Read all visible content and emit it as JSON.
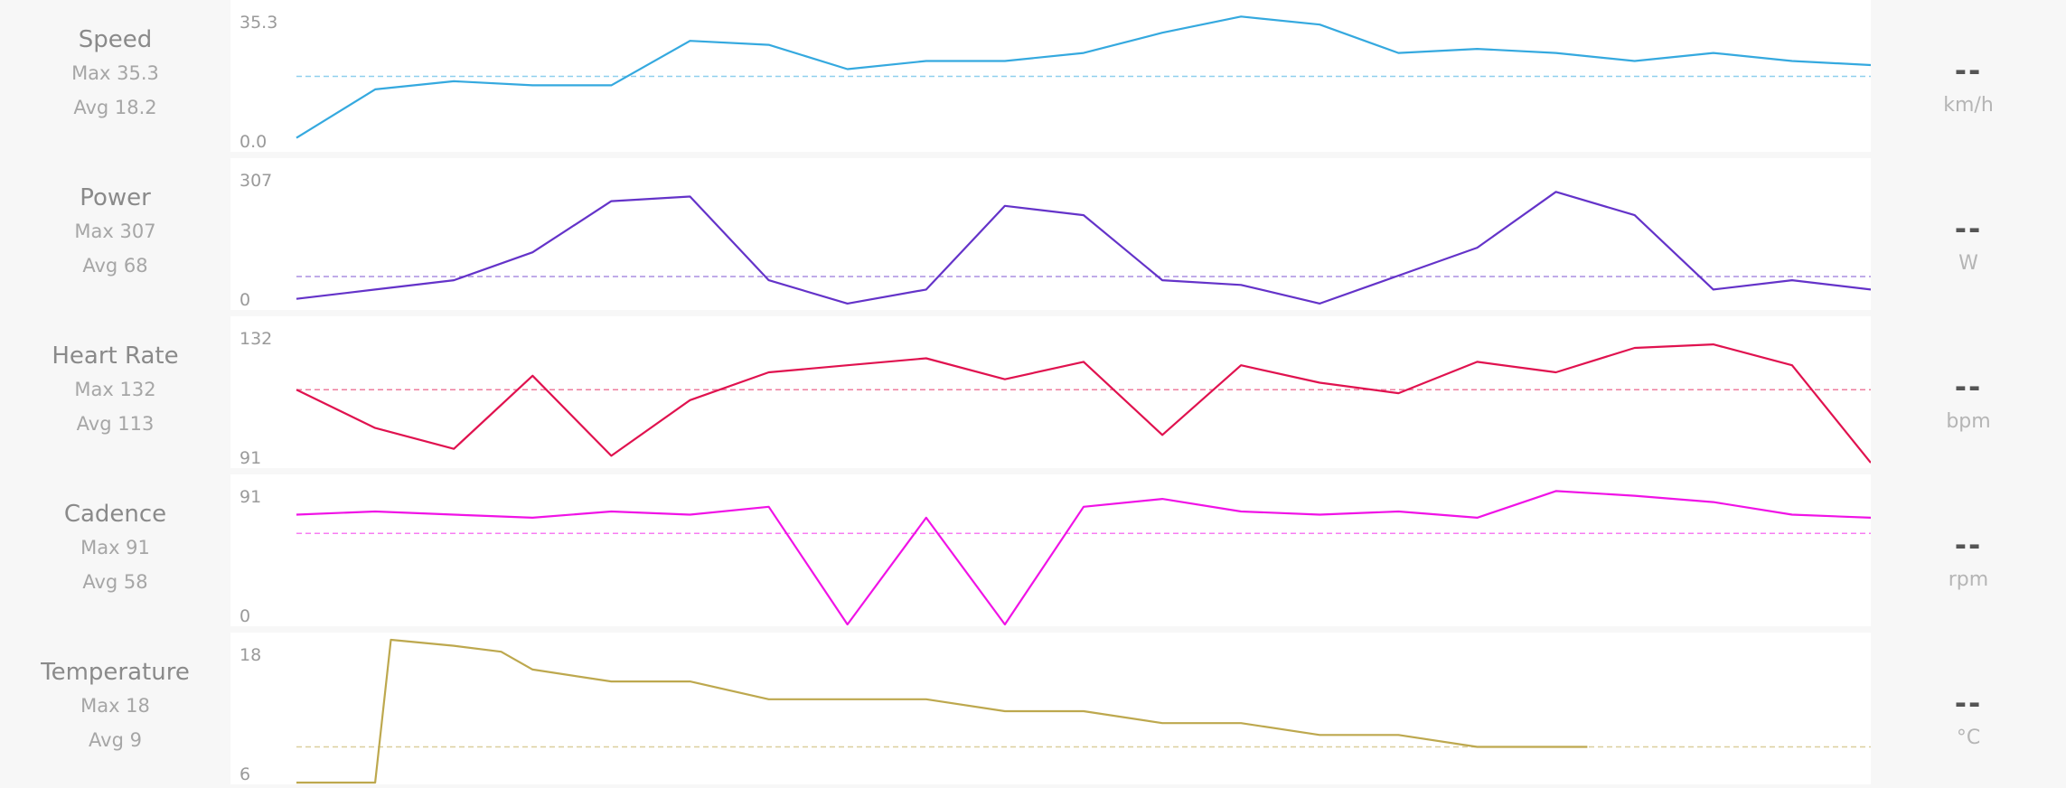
{
  "chart_data": [
    {
      "type": "line",
      "name": "Speed",
      "max_label": "Max 35.3",
      "avg_label": "Avg 18.2",
      "ymax_label": "35.3",
      "ymin_label": "0.0",
      "current": "--",
      "unit": "km/h",
      "ylim": [
        0,
        35.3
      ],
      "avg": 18.2,
      "color": "#35a9df",
      "x": [
        0,
        5,
        10,
        15,
        20,
        25,
        30,
        35,
        40,
        45,
        50,
        55,
        60,
        65,
        70,
        75,
        80,
        85,
        90,
        95,
        100
      ],
      "values": [
        3,
        15,
        17,
        16,
        16,
        27,
        26,
        20,
        22,
        22,
        24,
        29,
        33,
        31,
        24,
        25,
        24,
        22,
        24,
        22,
        21
      ]
    },
    {
      "type": "line",
      "name": "Power",
      "max_label": "Max 307",
      "avg_label": "Avg 68",
      "ymax_label": "307",
      "ymin_label": "0",
      "current": "--",
      "unit": "W",
      "ylim": [
        0,
        307
      ],
      "avg": 68,
      "color": "#6433c9",
      "x": [
        0,
        5,
        10,
        15,
        20,
        25,
        30,
        35,
        40,
        45,
        50,
        55,
        60,
        65,
        70,
        75,
        80,
        85,
        90,
        95,
        100
      ],
      "values": [
        20,
        40,
        60,
        120,
        230,
        240,
        60,
        10,
        40,
        220,
        200,
        60,
        50,
        10,
        70,
        130,
        250,
        200,
        40,
        60,
        40
      ]
    },
    {
      "type": "line",
      "name": "Heart Rate",
      "max_label": "Max 132",
      "avg_label": "Avg 113",
      "ymax_label": "132",
      "ymin_label": "91",
      "current": "--",
      "unit": "bpm",
      "ylim": [
        91,
        132
      ],
      "avg": 113,
      "color": "#e0124f",
      "x": [
        0,
        5,
        10,
        15,
        20,
        25,
        30,
        35,
        40,
        45,
        50,
        55,
        60,
        65,
        70,
        75,
        80,
        85,
        90,
        95,
        100
      ],
      "values": [
        113,
        102,
        96,
        117,
        94,
        110,
        118,
        120,
        122,
        116,
        121,
        100,
        120,
        115,
        112,
        121,
        118,
        125,
        126,
        120,
        92
      ]
    },
    {
      "type": "line",
      "name": "Cadence",
      "max_label": "Max 91",
      "avg_label": "Avg 58",
      "ymax_label": "91",
      "ymin_label": "0",
      "current": "--",
      "unit": "rpm",
      "ylim": [
        0,
        91
      ],
      "avg": 58,
      "color": "#f013e6",
      "x": [
        0,
        5,
        10,
        15,
        20,
        25,
        30,
        35,
        40,
        45,
        50,
        55,
        60,
        65,
        70,
        75,
        80,
        85,
        90,
        95,
        100
      ],
      "values": [
        70,
        72,
        70,
        68,
        72,
        70,
        75,
        0,
        68,
        0,
        75,
        80,
        72,
        70,
        72,
        68,
        85,
        82,
        78,
        70,
        68
      ]
    },
    {
      "type": "line",
      "name": "Temperature",
      "max_label": "Max 18",
      "avg_label": "Avg 9",
      "ymax_label": "18",
      "ymin_label": "6",
      "current": "--",
      "unit": "°C",
      "ylim": [
        6,
        18
      ],
      "avg": 9,
      "color": "#bda84e",
      "x": [
        0,
        5,
        6,
        10,
        13,
        15,
        20,
        25,
        30,
        35,
        40,
        45,
        50,
        55,
        60,
        65,
        70,
        75,
        80,
        82
      ],
      "values": [
        6,
        6,
        18,
        17.5,
        17,
        15.5,
        14.5,
        14.5,
        13,
        13,
        13,
        12,
        12,
        11,
        11,
        10,
        10,
        9,
        9,
        9
      ]
    }
  ]
}
